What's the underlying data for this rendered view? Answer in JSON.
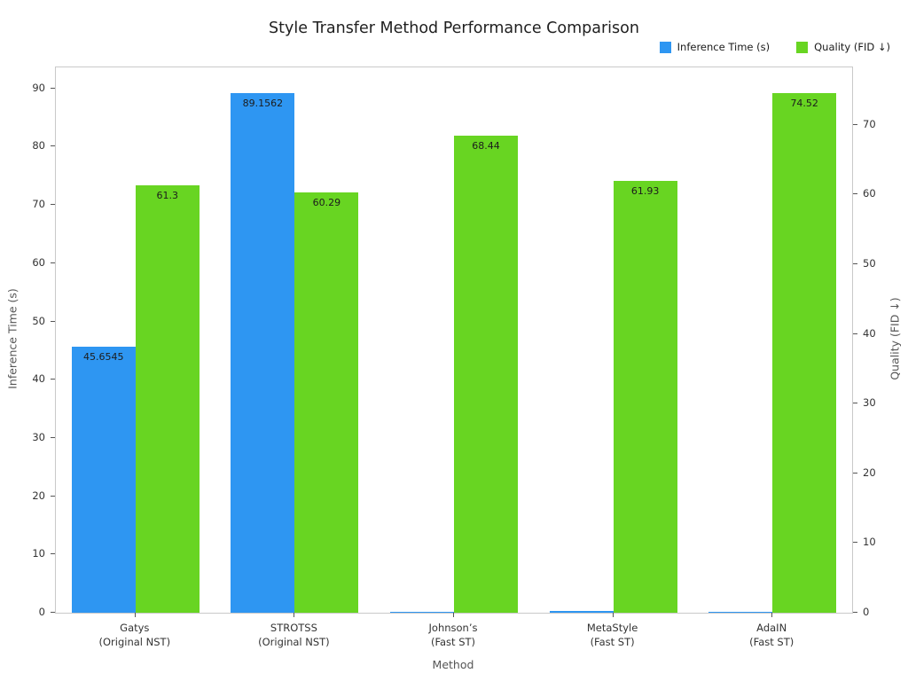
{
  "title": "Style Transfer Method Performance Comparison",
  "axes": {
    "x_label": "Method",
    "y_left_label": "Inference Time (s)",
    "y_right_label": "Quality (FID ↓)"
  },
  "chart_data": {
    "type": "bar",
    "grid": false,
    "legend_position": "top-right",
    "categories": [
      [
        "Gatys",
        "(Original NST)"
      ],
      [
        "STROTSS",
        "(Original NST)"
      ],
      [
        "Johnson’s",
        "(Fast ST)"
      ],
      [
        "MetaStyle",
        "(Fast ST)"
      ],
      [
        "AdaIN",
        "(Fast ST)"
      ]
    ],
    "series": [
      {
        "name": "Inference Time (s)",
        "axis": "left",
        "color": "#2e96f2",
        "values": [
          45.6545,
          89.1562,
          0.06,
          0.3,
          0.15
        ],
        "labels": [
          "45.6545",
          "89.1562",
          null,
          null,
          null
        ]
      },
      {
        "name": "Quality (FID ↓)",
        "axis": "right",
        "color": "#68d522",
        "values": [
          61.3,
          60.29,
          68.44,
          61.93,
          74.52
        ],
        "labels": [
          "61.3",
          "60.29",
          "68.44",
          "61.93",
          "74.52"
        ]
      }
    ],
    "y_left": {
      "ticks": [
        0,
        10,
        20,
        30,
        40,
        50,
        60,
        70,
        80,
        90
      ],
      "max": 93.61
    },
    "y_right": {
      "ticks": [
        0,
        10,
        20,
        30,
        40,
        50,
        60,
        70
      ],
      "max": 78.25
    }
  }
}
